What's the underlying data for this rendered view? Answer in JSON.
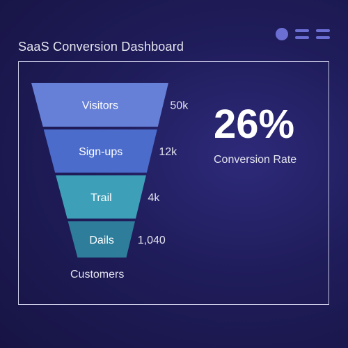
{
  "header": {
    "title": "SaaS Conversion Dashboard",
    "controls": {
      "dot_icon": "circle-icon",
      "menu_icons": [
        "menu-icon",
        "menu-icon"
      ]
    }
  },
  "funnel": {
    "stages": [
      {
        "label": "Visitors",
        "value": "50k",
        "color": "#6680d8"
      },
      {
        "label": "Sign-ups",
        "value": "12k",
        "color": "#4b6ccb"
      },
      {
        "label": "Trail",
        "value": "4k",
        "color": "#3ea0b8"
      },
      {
        "label": "Dails",
        "value": "1,040",
        "color": "#2e7d9b"
      }
    ],
    "footer_label": "Customers"
  },
  "kpi": {
    "value": "26%",
    "label": "Conversion Rate"
  }
}
